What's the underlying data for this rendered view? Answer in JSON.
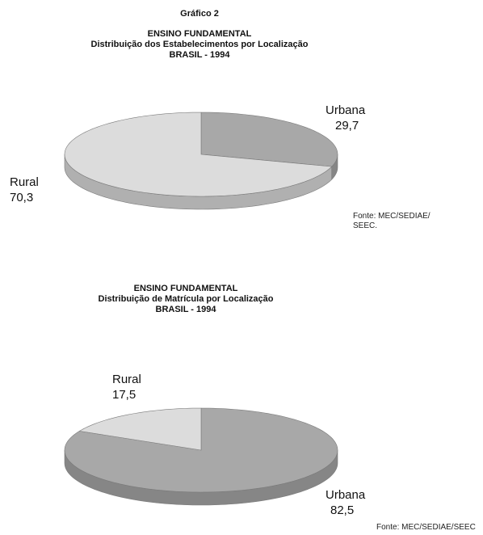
{
  "figure_title": "Gráfico 2",
  "chart_data": [
    {
      "type": "pie",
      "title_lines": [
        "ENSINO FUNDAMENTAL",
        "Distribuição dos Estabelecimentos por Localização",
        "BRASIL - 1994"
      ],
      "slices": [
        {
          "label": "Urbana",
          "value_text": "29,7",
          "value": 29.7,
          "color": "#a8a8a8"
        },
        {
          "label": "Rural",
          "value_text": "70,3",
          "value": 70.3,
          "color": "#dcdcdc"
        }
      ],
      "source_lines": [
        "Fonte: MEC/SEDIAE/",
        "SEEC."
      ]
    },
    {
      "type": "pie",
      "title_lines": [
        "ENSINO FUNDAMENTAL",
        "Distribuição de Matrícula por Localização",
        "BRASIL - 1994"
      ],
      "slices": [
        {
          "label": "Urbana",
          "value_text": "82,5",
          "value": 82.5,
          "color": "#a8a8a8"
        },
        {
          "label": "Rural",
          "value_text": "17,5",
          "value": 17.5,
          "color": "#dcdcdc"
        }
      ],
      "source_lines": [
        "Fonte: MEC/SEDIAE/SEEC"
      ]
    }
  ]
}
